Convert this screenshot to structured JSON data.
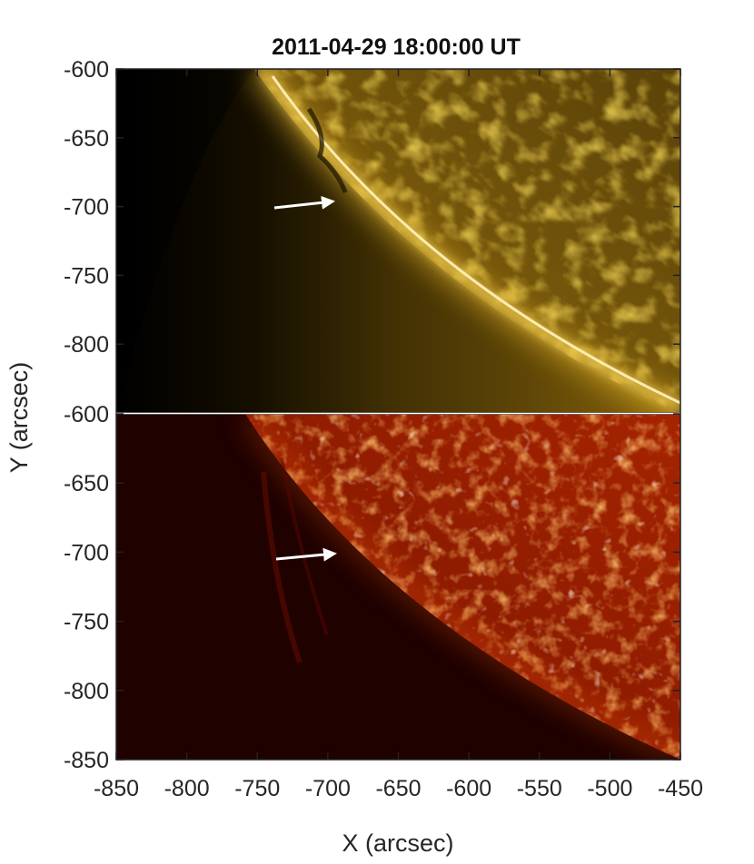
{
  "title": "2011-04-29 18:00:00 UT",
  "xlabel": "X (arcsec)",
  "ylabel": "Y (arcsec)",
  "x_ticks": [
    "-850",
    "-800",
    "-750",
    "-700",
    "-650",
    "-600",
    "-550",
    "-500",
    "-450"
  ],
  "top_panel_y_ticks": [
    "-600",
    "-650",
    "-700",
    "-750",
    "-800"
  ],
  "bottom_panel_y_ticks": [
    "-600",
    "-650",
    "-700",
    "-750",
    "-800",
    "-850"
  ],
  "x_range": [
    -850,
    -450
  ],
  "y_range": [
    -850,
    -600
  ],
  "panels": [
    {
      "name": "top-panel",
      "colormap": "gold",
      "colors": [
        "#000000",
        "#3a2a00",
        "#8a6200",
        "#d9a400",
        "#fff1b0"
      ]
    },
    {
      "name": "bottom-panel",
      "colormap": "red",
      "colors": [
        "#140000",
        "#4a0600",
        "#a42200",
        "#f06a10",
        "#fff4d8"
      ]
    }
  ],
  "arrow_color": "#ffffff"
}
